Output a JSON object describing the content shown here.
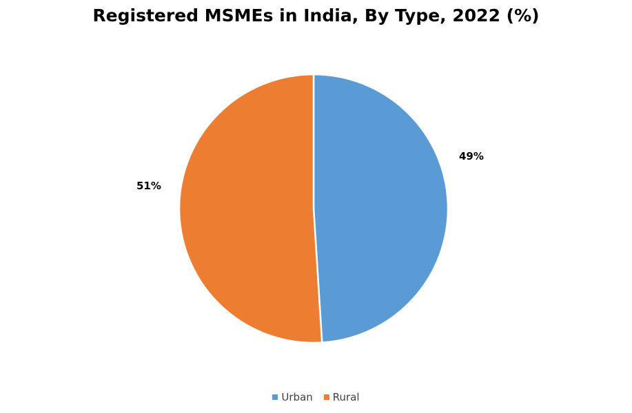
{
  "chart_data": {
    "type": "pie",
    "title": "Registered MSMEs in India, By Type, 2022 (%)",
    "categories": [
      "Urban",
      "Rural"
    ],
    "values": [
      49,
      51
    ],
    "data_labels": [
      "49%",
      "51%"
    ],
    "colors": [
      "#5B9BD5",
      "#ED7D31"
    ],
    "legend_position": "bottom",
    "start_angle": "top, clockwise"
  }
}
